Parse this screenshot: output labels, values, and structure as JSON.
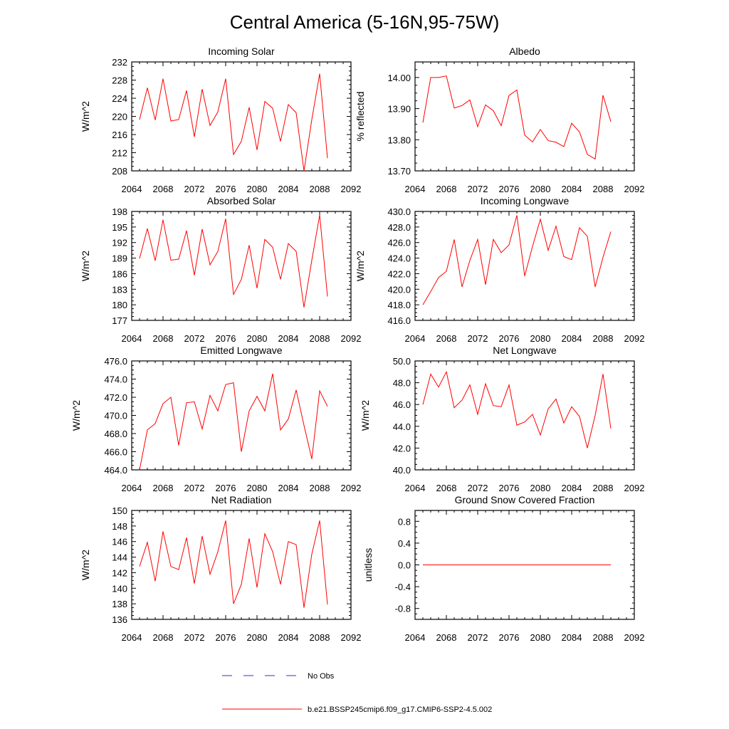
{
  "page": {
    "title": "Central America (5-16N,95-75W)",
    "legend": {
      "obs_label": "No Obs",
      "model_label": "b.e21.BSSP245cmip6.f09_g17.CMIP6-SSP2-4.5.002",
      "obs_color": "#3333cc",
      "model_color": "#ff0000"
    }
  },
  "chart_data": [
    {
      "type": "line",
      "title": "Incoming Solar",
      "ylabel": "W/m^2",
      "xlim": [
        2064,
        2092
      ],
      "ylim": [
        208,
        232
      ],
      "xticks": [
        "2064",
        "2068",
        "2072",
        "2076",
        "2080",
        "2084",
        "2088",
        "2092"
      ],
      "yticks": [
        "208",
        "212",
        "216",
        "220",
        "224",
        "228",
        "232"
      ],
      "x": [
        2065,
        2066,
        2067,
        2068,
        2069,
        2070,
        2071,
        2072,
        2073,
        2074,
        2075,
        2076,
        2077,
        2078,
        2079,
        2080,
        2081,
        2082,
        2083,
        2084,
        2085,
        2086,
        2087,
        2088,
        2089
      ],
      "series": [
        {
          "name": "b.e21.BSSP245cmip6.f09_g17.CMIP6-SSP2-4.5.002",
          "values": [
            219.3,
            226.3,
            219.2,
            228.3,
            219.0,
            219.3,
            225.7,
            215.5,
            226.0,
            218.0,
            221.0,
            228.3,
            211.6,
            214.5,
            222.0,
            212.6,
            223.3,
            221.8,
            214.5,
            222.6,
            220.8,
            208.0,
            219.3,
            229.4,
            210.8
          ]
        }
      ]
    },
    {
      "type": "line",
      "title": "Albedo",
      "ylabel": "% reflected",
      "xlim": [
        2064,
        2092
      ],
      "ylim": [
        13.7,
        14.05
      ],
      "xticks": [
        "2064",
        "2068",
        "2072",
        "2076",
        "2080",
        "2084",
        "2088",
        "2092"
      ],
      "yticks": [
        "13.70",
        "13.80",
        "13.90",
        "14.00"
      ],
      "x": [
        2065,
        2066,
        2067,
        2068,
        2069,
        2070,
        2071,
        2072,
        2073,
        2074,
        2075,
        2076,
        2077,
        2078,
        2079,
        2080,
        2081,
        2082,
        2083,
        2084,
        2085,
        2086,
        2087,
        2088,
        2089
      ],
      "series": [
        {
          "name": "b.e21.BSSP245cmip6.f09_g17.CMIP6-SSP2-4.5.002",
          "values": [
            13.855,
            14.0,
            14.0,
            14.005,
            13.902,
            13.91,
            13.928,
            13.842,
            13.912,
            13.893,
            13.845,
            13.942,
            13.96,
            13.815,
            13.793,
            13.833,
            13.797,
            13.792,
            13.778,
            13.853,
            13.825,
            13.753,
            13.738,
            13.943,
            13.858
          ]
        }
      ]
    },
    {
      "type": "line",
      "title": "Absorbed Solar",
      "ylabel": "W/m^2",
      "xlim": [
        2064,
        2092
      ],
      "ylim": [
        177,
        198
      ],
      "xticks": [
        "2064",
        "2068",
        "2072",
        "2076",
        "2080",
        "2084",
        "2088",
        "2092"
      ],
      "yticks": [
        "177",
        "180",
        "183",
        "186",
        "189",
        "192",
        "195",
        "198"
      ],
      "x": [
        2065,
        2066,
        2067,
        2068,
        2069,
        2070,
        2071,
        2072,
        2073,
        2074,
        2075,
        2076,
        2077,
        2078,
        2079,
        2080,
        2081,
        2082,
        2083,
        2084,
        2085,
        2086,
        2087,
        2088,
        2089
      ],
      "series": [
        {
          "name": "b.e21.BSSP245cmip6.f09_g17.CMIP6-SSP2-4.5.002",
          "values": [
            188.9,
            194.7,
            188.5,
            196.4,
            188.6,
            188.8,
            194.3,
            185.7,
            194.6,
            187.7,
            190.3,
            196.6,
            182.0,
            184.9,
            191.5,
            183.2,
            192.6,
            191.1,
            184.9,
            191.8,
            190.3,
            179.5,
            188.6,
            197.3,
            181.6
          ]
        }
      ]
    },
    {
      "type": "line",
      "title": "Incoming Longwave",
      "ylabel": "W/m^2",
      "xlim": [
        2064,
        2092
      ],
      "ylim": [
        416.0,
        430.0
      ],
      "xticks": [
        "2064",
        "2068",
        "2072",
        "2076",
        "2080",
        "2084",
        "2088",
        "2092"
      ],
      "yticks": [
        "416.0",
        "418.0",
        "420.0",
        "422.0",
        "424.0",
        "426.0",
        "428.0",
        "430.0"
      ],
      "x": [
        2065,
        2066,
        2067,
        2068,
        2069,
        2070,
        2071,
        2072,
        2073,
        2074,
        2075,
        2076,
        2077,
        2078,
        2079,
        2080,
        2081,
        2082,
        2083,
        2084,
        2085,
        2086,
        2087,
        2088,
        2089
      ],
      "series": [
        {
          "name": "b.e21.BSSP245cmip6.f09_g17.CMIP6-SSP2-4.5.002",
          "values": [
            418.0,
            419.7,
            421.5,
            422.3,
            426.4,
            420.3,
            423.7,
            426.4,
            420.6,
            426.4,
            424.7,
            425.7,
            429.5,
            421.7,
            425.5,
            429.0,
            425.0,
            428.1,
            424.2,
            423.8,
            427.9,
            426.8,
            420.3,
            424.1,
            427.4
          ]
        }
      ]
    },
    {
      "type": "line",
      "title": "Emitted Longwave",
      "ylabel": "W/m^2",
      "xlim": [
        2064,
        2092
      ],
      "ylim": [
        464.0,
        476.0
      ],
      "xticks": [
        "2064",
        "2068",
        "2072",
        "2076",
        "2080",
        "2084",
        "2088",
        "2092"
      ],
      "yticks": [
        "464.0",
        "466.0",
        "468.0",
        "470.0",
        "472.0",
        "474.0",
        "476.0"
      ],
      "x": [
        2065,
        2066,
        2067,
        2068,
        2069,
        2070,
        2071,
        2072,
        2073,
        2074,
        2075,
        2076,
        2077,
        2078,
        2079,
        2080,
        2081,
        2082,
        2083,
        2084,
        2085,
        2086,
        2087,
        2088,
        2089
      ],
      "series": [
        {
          "name": "b.e21.BSSP245cmip6.f09_g17.CMIP6-SSP2-4.5.002",
          "values": [
            464.0,
            468.4,
            469.1,
            471.3,
            472.0,
            466.7,
            471.4,
            471.5,
            468.5,
            472.2,
            470.5,
            473.4,
            473.6,
            466.0,
            470.5,
            472.1,
            470.5,
            474.6,
            468.4,
            469.6,
            472.8,
            468.9,
            465.2,
            472.7,
            471.0
          ]
        }
      ]
    },
    {
      "type": "line",
      "title": "Net Longwave",
      "ylabel": "W/m^2",
      "xlim": [
        2064,
        2092
      ],
      "ylim": [
        40.0,
        50.0
      ],
      "xticks": [
        "2064",
        "2068",
        "2072",
        "2076",
        "2080",
        "2084",
        "2088",
        "2092"
      ],
      "yticks": [
        "40.0",
        "42.0",
        "44.0",
        "46.0",
        "48.0",
        "50.0"
      ],
      "x": [
        2065,
        2066,
        2067,
        2068,
        2069,
        2070,
        2071,
        2072,
        2073,
        2074,
        2075,
        2076,
        2077,
        2078,
        2079,
        2080,
        2081,
        2082,
        2083,
        2084,
        2085,
        2086,
        2087,
        2088,
        2089
      ],
      "series": [
        {
          "name": "b.e21.BSSP245cmip6.f09_g17.CMIP6-SSP2-4.5.002",
          "values": [
            46.0,
            48.8,
            47.6,
            49.0,
            45.7,
            46.4,
            47.8,
            45.1,
            47.9,
            45.9,
            45.8,
            47.8,
            44.1,
            44.4,
            45.1,
            43.2,
            45.6,
            46.5,
            44.3,
            45.8,
            44.9,
            42.0,
            45.0,
            48.8,
            43.8
          ]
        }
      ]
    },
    {
      "type": "line",
      "title": "Net Radiation",
      "ylabel": "W/m^2",
      "xlim": [
        2064,
        2092
      ],
      "ylim": [
        136,
        150
      ],
      "xticks": [
        "2064",
        "2068",
        "2072",
        "2076",
        "2080",
        "2084",
        "2088",
        "2092"
      ],
      "yticks": [
        "136",
        "138",
        "140",
        "142",
        "144",
        "146",
        "148",
        "150"
      ],
      "x": [
        2065,
        2066,
        2067,
        2068,
        2069,
        2070,
        2071,
        2072,
        2073,
        2074,
        2075,
        2076,
        2077,
        2078,
        2079,
        2080,
        2081,
        2082,
        2083,
        2084,
        2085,
        2086,
        2087,
        2088,
        2089
      ],
      "series": [
        {
          "name": "b.e21.BSSP245cmip6.f09_g17.CMIP6-SSP2-4.5.002",
          "values": [
            142.8,
            145.9,
            140.9,
            147.3,
            142.8,
            142.4,
            146.5,
            140.6,
            146.7,
            141.8,
            144.7,
            148.7,
            138.0,
            140.5,
            146.4,
            140.1,
            147.0,
            144.7,
            140.5,
            146.0,
            145.6,
            137.5,
            144.4,
            148.7,
            137.9
          ]
        }
      ]
    },
    {
      "type": "line",
      "title": "Ground Snow Covered Fraction",
      "ylabel": "unitless",
      "xlim": [
        2064,
        2092
      ],
      "ylim": [
        -1.0,
        1.0
      ],
      "xticks": [
        "2064",
        "2068",
        "2072",
        "2076",
        "2080",
        "2084",
        "2088",
        "2092"
      ],
      "yticks": [
        "-0.8",
        "-0.4",
        "0.0",
        "0.4",
        "0.8"
      ],
      "x": [
        2065,
        2066,
        2067,
        2068,
        2069,
        2070,
        2071,
        2072,
        2073,
        2074,
        2075,
        2076,
        2077,
        2078,
        2079,
        2080,
        2081,
        2082,
        2083,
        2084,
        2085,
        2086,
        2087,
        2088,
        2089
      ],
      "series": [
        {
          "name": "b.e21.BSSP245cmip6.f09_g17.CMIP6-SSP2-4.5.002",
          "values": [
            0,
            0,
            0,
            0,
            0,
            0,
            0,
            0,
            0,
            0,
            0,
            0,
            0,
            0,
            0,
            0,
            0,
            0,
            0,
            0,
            0,
            0,
            0,
            0,
            0
          ]
        }
      ]
    }
  ]
}
